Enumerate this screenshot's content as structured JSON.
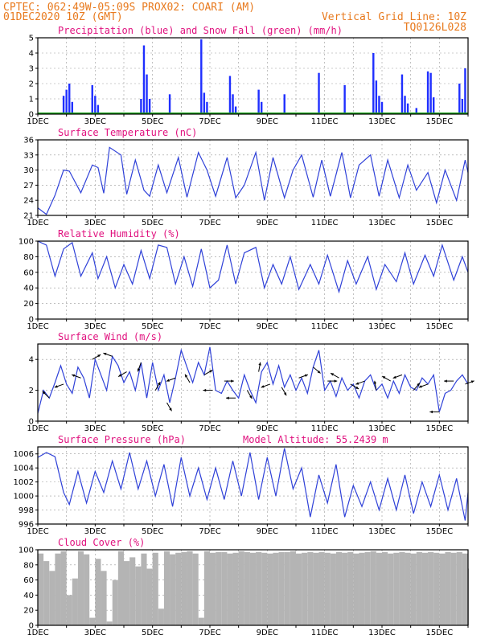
{
  "header": {
    "line1": "CPTEC:  062:49W-05:09S  PROX02: COARI (AM)",
    "line2_left": "01DEC2020 10Z (GMT)",
    "line2_right": "Vertical Grid Line: 10Z",
    "line3_right": "TQ0126L028"
  },
  "x_tick_labels": [
    "1DEC",
    "3DEC",
    "5DEC",
    "7DEC",
    "9DEC",
    "11DEC",
    "13DEC",
    "15DEC"
  ],
  "colors": {
    "precip": "#1f2fff",
    "snow": "#1aa31a",
    "line": "#2f41d8",
    "cloud": "#b4b4b4",
    "header": "#e87a1e",
    "title": "#e0117e"
  },
  "chart_data": [
    {
      "type": "bar",
      "title": "Precipitation (blue) and Snow Fall (green) (mm/h)",
      "ylim": [
        0,
        5
      ],
      "yticks": [
        0,
        1,
        2,
        3,
        4,
        5
      ],
      "series": [
        {
          "name": "Precipitation",
          "x": [
            1.9,
            2.0,
            2.1,
            2.2,
            2.9,
            3.0,
            3.1,
            4.6,
            4.7,
            4.8,
            4.9,
            5.6,
            6.7,
            6.8,
            6.9,
            7.7,
            7.8,
            7.9,
            8.7,
            8.8,
            9.6,
            10.8,
            11.7,
            12.7,
            12.8,
            12.9,
            13.0,
            13.7,
            13.8,
            13.9,
            14.2,
            14.6,
            14.7,
            14.8,
            15.7,
            15.8,
            15.9
          ],
          "values": [
            1.2,
            1.6,
            2.0,
            0.8,
            1.9,
            1.2,
            0.6,
            1.0,
            4.5,
            2.6,
            1.0,
            1.3,
            4.9,
            1.4,
            0.8,
            2.5,
            1.3,
            0.5,
            1.6,
            0.8,
            1.3,
            2.7,
            1.9,
            4.0,
            2.2,
            1.2,
            0.8,
            2.6,
            1.2,
            0.7,
            0.4,
            2.8,
            2.7,
            1.1,
            2.0,
            1.0,
            3.0
          ]
        },
        {
          "name": "Snow Fall",
          "x": [
            1.0,
            16.0
          ],
          "values": [
            0,
            0
          ]
        }
      ]
    },
    {
      "type": "line",
      "title": "Surface Temperature (nC)",
      "ylim": [
        21,
        36
      ],
      "yticks": [
        21,
        24,
        27,
        30,
        33,
        36
      ],
      "x": [
        1.0,
        1.3,
        1.6,
        1.9,
        2.1,
        2.5,
        2.9,
        3.1,
        3.3,
        3.5,
        3.9,
        4.1,
        4.4,
        4.7,
        4.9,
        5.2,
        5.5,
        5.9,
        6.2,
        6.6,
        6.9,
        7.2,
        7.6,
        7.9,
        8.2,
        8.6,
        8.9,
        9.2,
        9.6,
        9.9,
        10.2,
        10.6,
        10.9,
        11.2,
        11.6,
        11.9,
        12.2,
        12.6,
        12.9,
        13.2,
        13.6,
        13.9,
        14.2,
        14.6,
        14.9,
        15.2,
        15.6,
        15.9,
        16.0
      ],
      "values": [
        22.5,
        21.2,
        25.0,
        30.0,
        29.8,
        25.5,
        31.0,
        30.5,
        25.4,
        34.5,
        33.0,
        25.2,
        32.0,
        26.0,
        24.8,
        31.0,
        25.5,
        32.5,
        24.6,
        33.5,
        30.0,
        24.8,
        32.5,
        24.5,
        27.0,
        33.5,
        24.0,
        32.5,
        24.5,
        30.0,
        33.0,
        24.6,
        32.0,
        24.8,
        33.5,
        24.5,
        31.0,
        33.0,
        24.8,
        32.0,
        24.5,
        31.0,
        26.0,
        29.5,
        23.5,
        30.0,
        24.0,
        32.0,
        29.5
      ]
    },
    {
      "type": "line",
      "title": "Relative Humidity (%)",
      "ylim": [
        0,
        100
      ],
      "yticks": [
        0,
        20,
        40,
        60,
        80,
        100
      ],
      "x": [
        1.0,
        1.3,
        1.6,
        1.9,
        2.2,
        2.5,
        2.9,
        3.1,
        3.4,
        3.7,
        4.0,
        4.3,
        4.6,
        4.9,
        5.2,
        5.5,
        5.8,
        6.1,
        6.4,
        6.7,
        7.0,
        7.3,
        7.6,
        7.9,
        8.2,
        8.6,
        8.9,
        9.2,
        9.5,
        9.8,
        10.1,
        10.5,
        10.8,
        11.1,
        11.5,
        11.8,
        12.1,
        12.5,
        12.8,
        13.1,
        13.5,
        13.8,
        14.1,
        14.5,
        14.8,
        15.1,
        15.5,
        15.8,
        16.0
      ],
      "values": [
        100,
        95,
        55,
        90,
        98,
        55,
        85,
        52,
        80,
        40,
        70,
        45,
        88,
        52,
        95,
        92,
        45,
        80,
        42,
        90,
        40,
        50,
        95,
        45,
        85,
        92,
        40,
        70,
        45,
        80,
        38,
        70,
        45,
        82,
        35,
        75,
        45,
        80,
        38,
        70,
        48,
        85,
        45,
        82,
        55,
        95,
        50,
        80,
        60
      ]
    },
    {
      "type": "line",
      "title": "Surface Wind (m/s)",
      "ylim": [
        0,
        5
      ],
      "yticks": [
        0,
        2,
        4
      ],
      "x": [
        1.0,
        1.2,
        1.4,
        1.6,
        1.8,
        2.0,
        2.2,
        2.4,
        2.6,
        2.8,
        3.0,
        3.2,
        3.4,
        3.6,
        3.8,
        4.0,
        4.2,
        4.4,
        4.6,
        4.8,
        5.0,
        5.2,
        5.4,
        5.6,
        5.8,
        6.0,
        6.2,
        6.4,
        6.6,
        6.8,
        7.0,
        7.2,
        7.4,
        7.6,
        7.8,
        8.0,
        8.2,
        8.4,
        8.6,
        8.8,
        9.0,
        9.2,
        9.4,
        9.6,
        9.8,
        10.0,
        10.2,
        10.4,
        10.6,
        10.8,
        11.0,
        11.2,
        11.4,
        11.6,
        11.8,
        12.0,
        12.2,
        12.4,
        12.6,
        12.8,
        13.0,
        13.2,
        13.4,
        13.6,
        13.8,
        14.0,
        14.2,
        14.4,
        14.6,
        14.8,
        15.0,
        15.2,
        15.4,
        15.6,
        15.8,
        16.0
      ],
      "values": [
        0.5,
        2.0,
        1.5,
        2.5,
        3.6,
        2.4,
        1.8,
        3.5,
        2.8,
        1.5,
        4.0,
        3.0,
        2.0,
        4.2,
        3.6,
        2.5,
        3.2,
        2.0,
        3.8,
        1.5,
        3.8,
        2.0,
        3.0,
        1.2,
        2.8,
        4.6,
        3.5,
        2.5,
        3.8,
        3.0,
        4.8,
        2.0,
        1.8,
        2.6,
        2.0,
        1.5,
        3.0,
        2.0,
        1.2,
        3.2,
        3.8,
        2.4,
        3.6,
        2.2,
        3.0,
        2.0,
        2.8,
        1.8,
        3.5,
        4.6,
        2.0,
        2.6,
        1.6,
        2.8,
        2.0,
        2.4,
        1.5,
        2.6,
        3.0,
        2.0,
        2.4,
        1.5,
        2.6,
        1.8,
        3.0,
        2.2,
        2.0,
        2.8,
        2.4,
        3.0,
        0.6,
        1.8,
        2.0,
        2.6,
        3.0,
        2.4
      ],
      "arrows": {
        "x": [
          1.4,
          1.9,
          2.5,
          2.9,
          3.6,
          4.1,
          4.6,
          5.1,
          5.5,
          5.8,
          6.3,
          6.8,
          7.1,
          7.5,
          7.9,
          8.3,
          8.7,
          9.1,
          9.5,
          10.1,
          10.6,
          11.1,
          11.5,
          11.9,
          12.4,
          12.8,
          13.3,
          13.7,
          14.1,
          14.6,
          15.0,
          15.5,
          15.9
        ],
        "angle_deg": [
          135,
          200,
          160,
          30,
          160,
          210,
          250,
          60,
          300,
          200,
          120,
          30,
          180,
          0,
          180,
          300,
          80,
          200,
          300,
          20,
          320,
          0,
          150,
          330,
          200,
          100,
          150,
          200,
          50,
          200,
          180,
          180,
          20
        ]
      }
    },
    {
      "type": "line",
      "title": "Surface Pressure (hPa)",
      "subtitle": "Model Altitude: 55.2439  m",
      "ylim": [
        996,
        1007
      ],
      "yticks": [
        996,
        998,
        1000,
        1002,
        1004,
        1006
      ],
      "x": [
        1.0,
        1.3,
        1.6,
        1.9,
        2.1,
        2.4,
        2.7,
        3.0,
        3.3,
        3.6,
        3.9,
        4.2,
        4.5,
        4.8,
        5.1,
        5.4,
        5.7,
        6.0,
        6.3,
        6.6,
        6.9,
        7.2,
        7.5,
        7.8,
        8.1,
        8.4,
        8.7,
        9.0,
        9.3,
        9.6,
        9.9,
        10.2,
        10.5,
        10.8,
        11.1,
        11.4,
        11.7,
        12.0,
        12.3,
        12.6,
        12.9,
        13.2,
        13.5,
        13.8,
        14.1,
        14.4,
        14.7,
        15.0,
        15.3,
        15.6,
        15.9,
        16.0
      ],
      "values": [
        1005.5,
        1006.2,
        1005.6,
        1000.5,
        998.8,
        1003.5,
        999.0,
        1003.5,
        1000.5,
        1005.0,
        1001.0,
        1006.2,
        1001.0,
        1005.0,
        1000.0,
        1004.5,
        998.5,
        1005.5,
        1000.0,
        1004.0,
        999.5,
        1004.0,
        999.5,
        1005.0,
        1000.0,
        1006.2,
        999.5,
        1005.5,
        1000.0,
        1006.8,
        1001.0,
        1004.0,
        997.0,
        1003.0,
        999.0,
        1004.5,
        997.0,
        1001.5,
        998.5,
        1002.0,
        998.0,
        1002.5,
        998.0,
        1003.0,
        997.5,
        1002.0,
        998.5,
        1003.0,
        998.0,
        1002.5,
        996.5,
        1000.5
      ]
    },
    {
      "type": "bar",
      "title": "Cloud Cover (%)",
      "ylim": [
        0,
        100
      ],
      "yticks": [
        0,
        20,
        40,
        60,
        80,
        100
      ],
      "x": [
        1.0,
        1.2,
        1.4,
        1.6,
        1.8,
        2.0,
        2.2,
        2.4,
        2.6,
        2.8,
        3.0,
        3.2,
        3.4,
        3.6,
        3.8,
        4.0,
        4.2,
        4.4,
        4.6,
        4.8,
        5.0,
        5.2,
        5.4,
        5.6,
        5.8,
        6.0,
        6.2,
        6.4,
        6.6,
        6.8,
        7.0,
        7.2,
        7.4,
        7.6,
        7.8,
        8.0,
        8.2,
        8.4,
        8.6,
        8.8,
        9.0,
        9.2,
        9.4,
        9.6,
        9.8,
        10.0,
        10.2,
        10.4,
        10.6,
        10.8,
        11.0,
        11.2,
        11.4,
        11.6,
        11.8,
        12.0,
        12.2,
        12.4,
        12.6,
        12.8,
        13.0,
        13.2,
        13.4,
        13.6,
        13.8,
        14.0,
        14.2,
        14.4,
        14.6,
        14.8,
        15.0,
        15.2,
        15.4,
        15.6,
        15.8,
        16.0
      ],
      "values": [
        95,
        85,
        72,
        95,
        98,
        40,
        62,
        98,
        94,
        10,
        88,
        72,
        5,
        60,
        98,
        85,
        90,
        78,
        95,
        75,
        96,
        22,
        98,
        94,
        96,
        97,
        98,
        95,
        10,
        98,
        96,
        97,
        97,
        95,
        96,
        98,
        97,
        96,
        97,
        96,
        95,
        96,
        97,
        97,
        98,
        95,
        96,
        97,
        96,
        97,
        96,
        95,
        97,
        96,
        97,
        95,
        96,
        97,
        98,
        96,
        97,
        95,
        96,
        97,
        96,
        95,
        97,
        96,
        97,
        96,
        95,
        97,
        96,
        97,
        95,
        75
      ]
    }
  ]
}
